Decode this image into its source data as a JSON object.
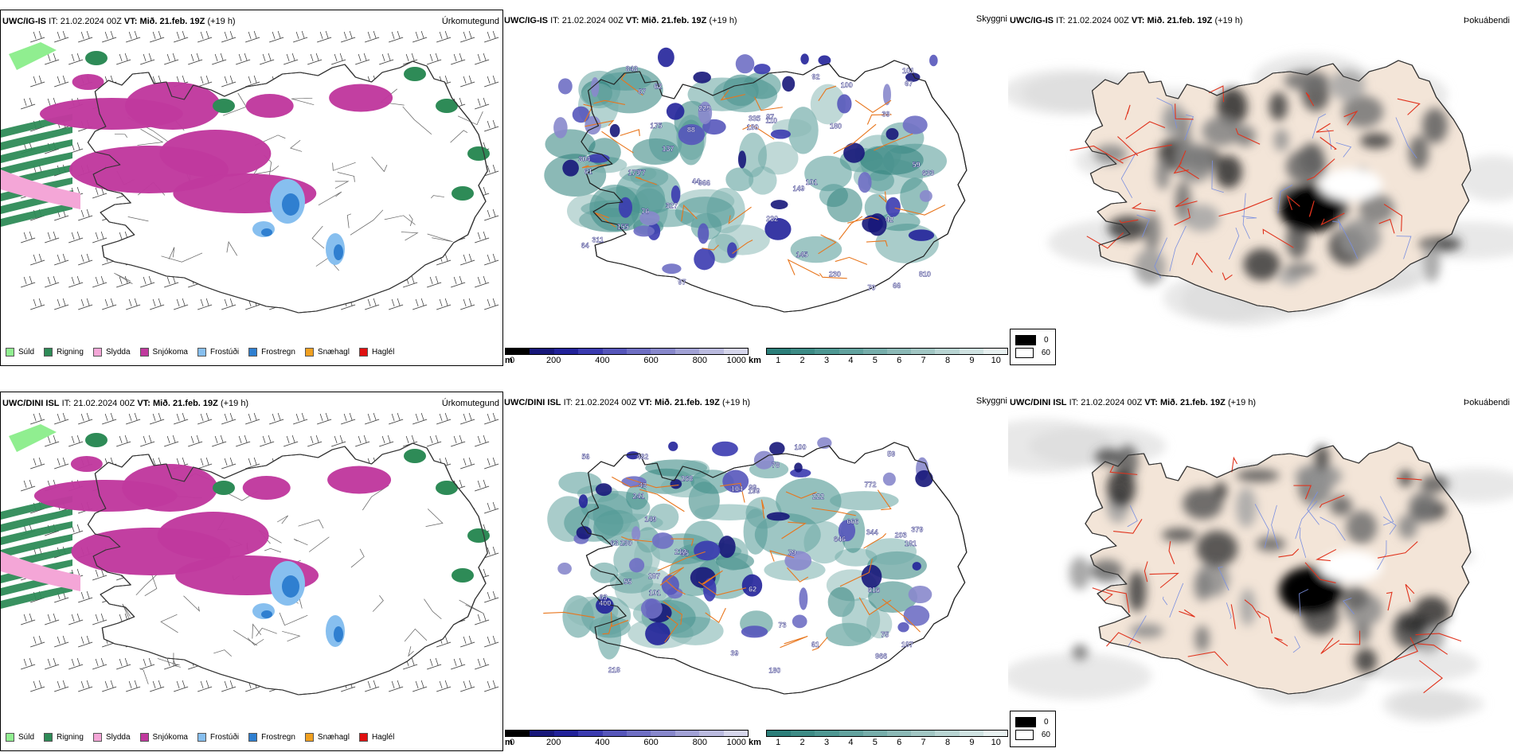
{
  "rows": [
    {
      "model": "UWC/IG-IS",
      "it_label": "IT:",
      "it_value": "21.02.2024 00Z",
      "vt_label": "VT:",
      "vt_value": "Mið. 21.feb. 19Z",
      "lead": "(+19 h)"
    },
    {
      "model": "UWC/DINI ISL",
      "it_label": "IT:",
      "it_value": "21.02.2024 00Z",
      "vt_label": "VT:",
      "vt_value": "Mið. 21.feb. 19Z",
      "lead": "(+19 h)"
    }
  ],
  "titles": {
    "precip_type": "Úrkomutegund",
    "visibility": "Skyggni",
    "fog": "Þokuábendi"
  },
  "precip_legend": [
    {
      "label": "Súld",
      "color": "#90ee90"
    },
    {
      "label": "Rigning",
      "color": "#2e8b57"
    },
    {
      "label": "Slydda",
      "color": "#f4a6d7"
    },
    {
      "label": "Snjókoma",
      "color": "#c0399e"
    },
    {
      "label": "Frostúði",
      "color": "#87bfef"
    },
    {
      "label": "Frostregn",
      "color": "#2f7fd0"
    },
    {
      "label": "Snæhagl",
      "color": "#f0a020"
    },
    {
      "label": "Haglél",
      "color": "#e01010"
    }
  ],
  "cloud_base": {
    "unit": "m",
    "ticks": [
      "0",
      "200",
      "400",
      "600",
      "800",
      "1000"
    ],
    "colors": [
      "#000000",
      "#17177a",
      "#22229a",
      "#3b3bb0",
      "#5656bb",
      "#6f6fc4",
      "#8888cc",
      "#a2a2d6",
      "#bbbbdf",
      "#d6d6ec"
    ]
  },
  "vis_km": {
    "unit": "km",
    "ticks": [
      "1",
      "2",
      "3",
      "4",
      "5",
      "6",
      "7",
      "8",
      "9",
      "10"
    ],
    "colors": [
      "#2c7f7a",
      "#3d8c86",
      "#4e9893",
      "#62a39f",
      "#77aeab",
      "#8cbab7",
      "#a2c7c4",
      "#b9d5d3",
      "#d0e3e2",
      "#e8f1f1"
    ]
  },
  "fog_legend": [
    {
      "label": "0",
      "color": "#000000"
    },
    {
      "label": "60",
      "color": "#ffffff"
    }
  ],
  "vis_labels_top": [
    "101",
    "70",
    "67",
    "64",
    "61",
    "97",
    "100",
    "88",
    "149",
    "180",
    "311",
    "335",
    "232",
    "87",
    "137",
    "327",
    "848",
    "175",
    "59",
    "77",
    "180",
    "633",
    "810",
    "155",
    "92",
    "42",
    "230",
    "966",
    "62",
    "39",
    "229",
    "44",
    "66",
    "304",
    "110",
    "173",
    "101",
    "76",
    "67",
    "145"
  ],
  "vis_labels_bottom": [
    "104",
    "62",
    "99",
    "149",
    "287",
    "218",
    "241",
    "203",
    "290",
    "222",
    "181",
    "187",
    "63",
    "100",
    "616",
    "61",
    "55",
    "482",
    "772",
    "268",
    "212",
    "966",
    "379",
    "199",
    "63",
    "79",
    "55",
    "59",
    "73",
    "180",
    "78",
    "101",
    "400",
    "39",
    "344",
    "56",
    "75",
    "666",
    "646",
    "43"
  ]
}
